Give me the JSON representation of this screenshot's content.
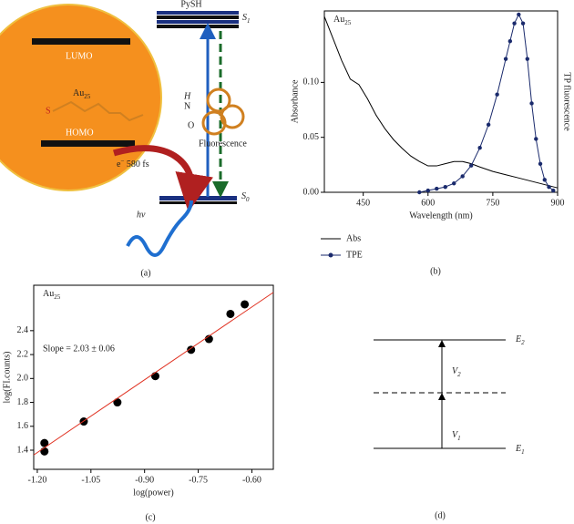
{
  "panel_a": {
    "pysh": "PySH",
    "s1": [
      "S",
      "1"
    ],
    "lumo": "LUMO",
    "au": [
      "Au",
      "25"
    ],
    "homo": "HOMO",
    "s": "S",
    "h": "H",
    "n": "N",
    "o": "O",
    "fluorescence": "Fluorescence",
    "electron": [
      "e",
      "−",
      " 580 fs"
    ],
    "s0": [
      "S",
      "0"
    ],
    "hv": "hν",
    "caption": "(a)"
  },
  "panel_d": {
    "e2": [
      "E",
      "2"
    ],
    "v2": [
      "V",
      "2"
    ],
    "v1": [
      "V",
      "1"
    ],
    "e1": [
      "E",
      "1"
    ],
    "caption": "(d)"
  },
  "chart_data": [
    {
      "type": "line",
      "annotation": [
        "Au",
        "25"
      ],
      "caption": "(b)",
      "x_label": "Wavelength (nm)",
      "y_label": "Absorbance",
      "y2_label": "TP fluorescence",
      "xlim": [
        360,
        900
      ],
      "xticks": [
        450,
        600,
        750,
        900
      ],
      "ylim": [
        0,
        0.165
      ],
      "yticks": [
        {
          "value": 0,
          "label": "0.00"
        },
        {
          "value": 0.05,
          "label": "0.05"
        },
        {
          "value": 0.1,
          "label": "0.10"
        }
      ],
      "y2lim": [
        0,
        1.02
      ],
      "legend": "below",
      "series": [
        {
          "name": "Abs",
          "color": "#000000",
          "mode": "lines",
          "x": [
            360,
            380,
            400,
            420,
            440,
            460,
            480,
            500,
            520,
            540,
            560,
            580,
            600,
            620,
            640,
            660,
            680,
            700,
            720,
            750,
            780,
            810,
            840,
            870,
            900
          ],
          "values": [
            0.16,
            0.14,
            0.12,
            0.103,
            0.098,
            0.085,
            0.07,
            0.058,
            0.048,
            0.04,
            0.033,
            0.028,
            0.024,
            0.024,
            0.026,
            0.028,
            0.028,
            0.026,
            0.023,
            0.019,
            0.016,
            0.013,
            0.01,
            0.007,
            0.004
          ]
        },
        {
          "name": "TPE",
          "color": "#1a2a6c",
          "mode": "lines+markers",
          "axis": "y2",
          "x": [
            580,
            600,
            620,
            640,
            660,
            680,
            700,
            720,
            740,
            760,
            780,
            790,
            800,
            810,
            820,
            830,
            840,
            850,
            860,
            870,
            880,
            890
          ],
          "values": [
            0,
            0.01,
            0.02,
            0.03,
            0.05,
            0.09,
            0.15,
            0.25,
            0.38,
            0.55,
            0.75,
            0.85,
            0.95,
            1,
            0.95,
            0.75,
            0.5,
            0.3,
            0.16,
            0.07,
            0.03,
            0.01
          ]
        }
      ]
    },
    {
      "type": "scatter",
      "annotation": [
        "Au",
        "25"
      ],
      "text": "Slope = 2.03 ± 0.06",
      "caption": "(c)",
      "x_label": "log(power)",
      "y_label": "log(FI.counts)",
      "xlim": [
        -1.21,
        -0.54
      ],
      "xticks": [
        {
          "value": -1.2,
          "label": "-1.20"
        },
        {
          "value": -1.05,
          "label": "-1.05"
        },
        {
          "value": -0.9,
          "label": "-0.90"
        },
        {
          "value": -0.75,
          "label": "-0.75"
        },
        {
          "value": -0.6,
          "label": "-0.60"
        }
      ],
      "ylim": [
        1.24,
        2.78
      ],
      "yticks": [
        1.4,
        1.6,
        1.8,
        {
          "value": 2,
          "label": "2.0"
        },
        2.2,
        2.4
      ],
      "series": [
        {
          "color": "#000000",
          "mode": "markers",
          "x": [
            -1.18,
            -1.18,
            -1.07,
            -0.976,
            -0.87,
            -0.77,
            -0.72,
            -0.66,
            -0.62
          ],
          "values": [
            1.46,
            1.39,
            1.64,
            1.8,
            2.02,
            2.24,
            2.33,
            2.54,
            2.62
          ]
        },
        {
          "color": "#e03020",
          "mode": "lines",
          "x": [
            -1.21,
            -0.54
          ],
          "values": [
            1.36,
            2.72
          ]
        }
      ]
    }
  ]
}
